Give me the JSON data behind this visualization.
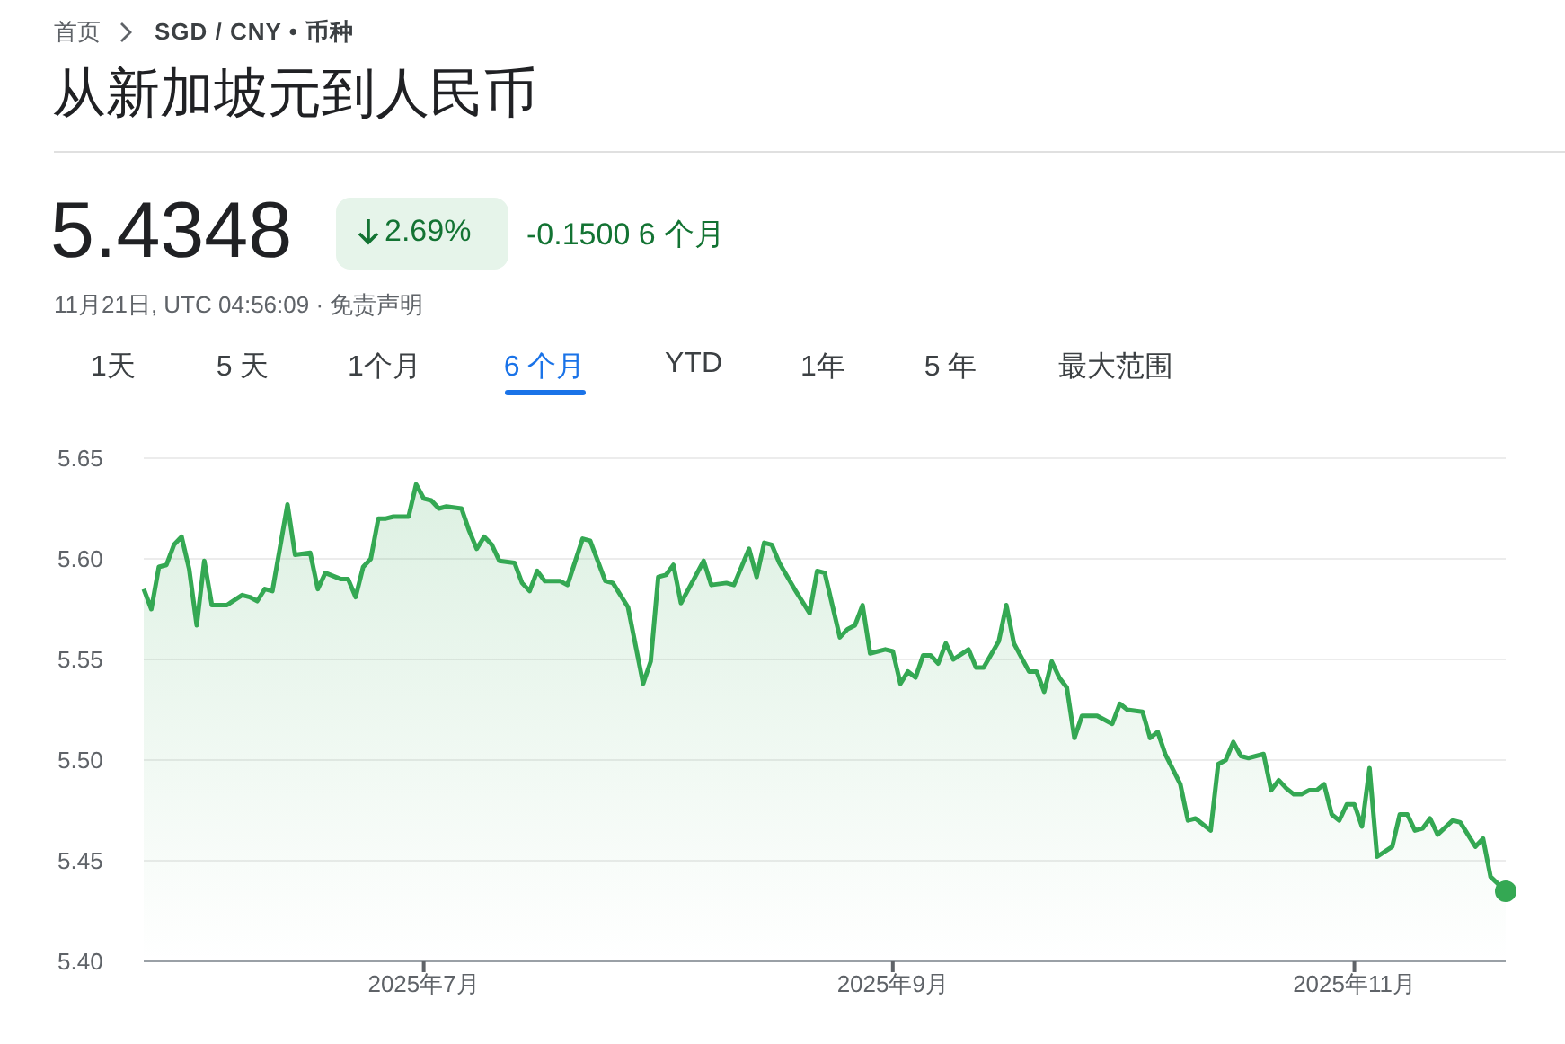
{
  "chart_data": {
    "type": "area",
    "title": "从新加坡元到人民币",
    "annotations": [
      "首页",
      "SGD / CNY • 币种",
      "5.4348",
      "2.69%",
      "-0.1500 6 个月",
      "11月21日, UTC 04:56:09 · 免责声明",
      "1天",
      "5 天",
      "1个月",
      "6 个月",
      "YTD",
      "1年",
      "5 年",
      "最大范围"
    ],
    "series": [
      {
        "color": "#34a853",
        "x": [
          "2025-05-25",
          "2025-05-26",
          "2025-05-27",
          "2025-05-28",
          "2025-05-29",
          "2025-05-30",
          "2025-05-31",
          "2025-06-01",
          "2025-06-02",
          "2025-06-03",
          "2025-06-05",
          "2025-06-07",
          "2025-06-08",
          "2025-06-09",
          "2025-06-10",
          "2025-06-11",
          "2025-06-13",
          "2025-06-14",
          "2025-06-16",
          "2025-06-17",
          "2025-06-18",
          "2025-06-20",
          "2025-06-21",
          "2025-06-22",
          "2025-06-23",
          "2025-06-24",
          "2025-06-25",
          "2025-06-26",
          "2025-06-27",
          "2025-06-29",
          "2025-06-30",
          "2025-07-01",
          "2025-07-02",
          "2025-07-03",
          "2025-07-04",
          "2025-07-06",
          "2025-07-07",
          "2025-07-08",
          "2025-07-09",
          "2025-07-10",
          "2025-07-11",
          "2025-07-13",
          "2025-07-14",
          "2025-07-15",
          "2025-07-16",
          "2025-07-17",
          "2025-07-19",
          "2025-07-20",
          "2025-07-22",
          "2025-07-23",
          "2025-07-25",
          "2025-07-26",
          "2025-07-28",
          "2025-07-30",
          "2025-07-31",
          "2025-08-01",
          "2025-08-02",
          "2025-08-03",
          "2025-08-04",
          "2025-08-05",
          "2025-08-07",
          "2025-08-08",
          "2025-08-10",
          "2025-08-11",
          "2025-08-13",
          "2025-08-14",
          "2025-08-15",
          "2025-08-16",
          "2025-08-17",
          "2025-08-19",
          "2025-08-21",
          "2025-08-22",
          "2025-08-23",
          "2025-08-25",
          "2025-08-26",
          "2025-08-27",
          "2025-08-28",
          "2025-08-29",
          "2025-08-31",
          "2025-09-01",
          "2025-09-02",
          "2025-09-03",
          "2025-09-04",
          "2025-09-05",
          "2025-09-06",
          "2025-09-07",
          "2025-09-08",
          "2025-09-09",
          "2025-09-11",
          "2025-09-12",
          "2025-09-13",
          "2025-09-15",
          "2025-09-16",
          "2025-09-17",
          "2025-09-19",
          "2025-09-20",
          "2025-09-21",
          "2025-09-22",
          "2025-09-23",
          "2025-09-24",
          "2025-09-25",
          "2025-09-26",
          "2025-09-28",
          "2025-09-30",
          "2025-10-01",
          "2025-10-02",
          "2025-10-04",
          "2025-10-05",
          "2025-10-06",
          "2025-10-07",
          "2025-10-09",
          "2025-10-10",
          "2025-10-11",
          "2025-10-13",
          "2025-10-14",
          "2025-10-15",
          "2025-10-16",
          "2025-10-17",
          "2025-10-18",
          "2025-10-20",
          "2025-10-21",
          "2025-10-22",
          "2025-10-23",
          "2025-10-24",
          "2025-10-25",
          "2025-10-26",
          "2025-10-27",
          "2025-10-28",
          "2025-10-29",
          "2025-10-30",
          "2025-10-31",
          "2025-11-01",
          "2025-11-02",
          "2025-11-03",
          "2025-11-04",
          "2025-11-06",
          "2025-11-07",
          "2025-11-08",
          "2025-11-09",
          "2025-11-10",
          "2025-11-11",
          "2025-11-12",
          "2025-11-14",
          "2025-11-15",
          "2025-11-17",
          "2025-11-18",
          "2025-11-19",
          "2025-11-21"
        ],
        "values": [
          5.585,
          5.575,
          5.596,
          5.597,
          5.607,
          5.611,
          5.595,
          5.567,
          5.599,
          5.577,
          5.577,
          5.582,
          5.581,
          5.579,
          5.585,
          5.584,
          5.627,
          5.602,
          5.603,
          5.585,
          5.593,
          5.59,
          5.59,
          5.581,
          5.596,
          5.6,
          5.62,
          5.62,
          5.621,
          5.621,
          5.637,
          5.63,
          5.629,
          5.625,
          5.626,
          5.625,
          5.614,
          5.605,
          5.611,
          5.607,
          5.599,
          5.598,
          5.588,
          5.584,
          5.594,
          5.589,
          5.589,
          5.587,
          5.61,
          5.609,
          5.589,
          5.588,
          5.576,
          5.538,
          5.549,
          5.591,
          5.592,
          5.597,
          5.578,
          5.585,
          5.599,
          5.587,
          5.588,
          5.587,
          5.605,
          5.591,
          5.608,
          5.607,
          5.598,
          5.585,
          5.573,
          5.594,
          5.593,
          5.561,
          5.565,
          5.567,
          5.577,
          5.553,
          5.555,
          5.554,
          5.538,
          5.544,
          5.541,
          5.552,
          5.552,
          5.548,
          5.558,
          5.55,
          5.555,
          5.546,
          5.546,
          5.559,
          5.577,
          5.558,
          5.544,
          5.544,
          5.534,
          5.549,
          5.541,
          5.536,
          5.511,
          5.522,
          5.522,
          5.518,
          5.528,
          5.525,
          5.524,
          5.511,
          5.514,
          5.503,
          5.488,
          5.47,
          5.471,
          5.465,
          5.498,
          5.5,
          5.509,
          5.502,
          5.501,
          5.503,
          5.485,
          5.49,
          5.486,
          5.483,
          5.483,
          5.485,
          5.485,
          5.488,
          5.473,
          5.47,
          5.478,
          5.478,
          5.467,
          5.496,
          5.452,
          5.457,
          5.473,
          5.473,
          5.465,
          5.466,
          5.471,
          5.463,
          5.47,
          5.469,
          5.457,
          5.461,
          5.442,
          5.4348
        ]
      },
      {
        "type": "scatter",
        "color": "#34a853",
        "marker": "circle",
        "x": [
          "2025-11-21"
        ],
        "values": [
          5.4348
        ]
      }
    ],
    "xlim": [
      "2025-05-25",
      "2025-11-21"
    ],
    "xticks": [
      {
        "value": "2025-07-01",
        "label": "2025年7月"
      },
      {
        "value": "2025-09-01",
        "label": "2025年9月"
      },
      {
        "value": "2025-11-01",
        "label": "2025年11月"
      }
    ],
    "ylim": [
      5.4,
      5.65
    ],
    "yticks": [
      {
        "value": 5.4,
        "label": "5.40"
      },
      {
        "value": 5.45,
        "label": "5.45"
      },
      {
        "value": 5.5,
        "label": "5.50"
      },
      {
        "value": 5.55,
        "label": "5.55"
      },
      {
        "value": 5.6,
        "label": "5.60"
      },
      {
        "value": 5.65,
        "label": "5.65"
      }
    ],
    "grid": "y",
    "marker": "none",
    "line_style": "solid"
  }
}
